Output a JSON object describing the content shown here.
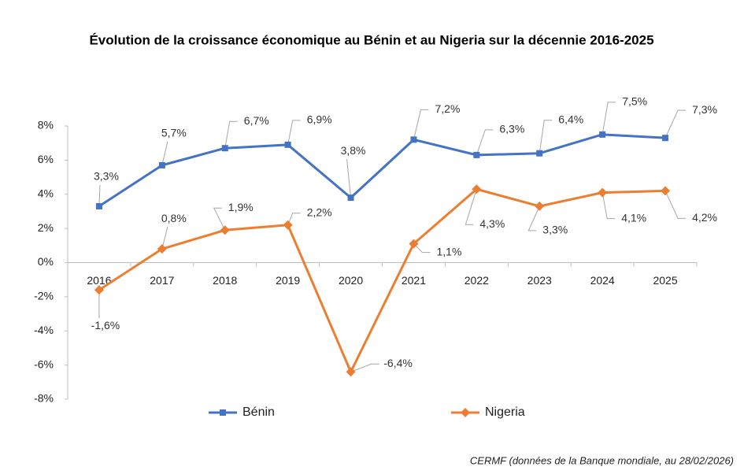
{
  "chart_data": {
    "type": "line",
    "title": "Évolution de la croissance économique au Bénin et au Nigeria sur la décennie 2016-2025",
    "source": "CERMF (données de la Banque mondiale, au 28/02/2026)",
    "categories": [
      "2016",
      "2017",
      "2018",
      "2019",
      "2020",
      "2021",
      "2022",
      "2023",
      "2024",
      "2025"
    ],
    "series": [
      {
        "name": "Bénin",
        "color": "#4472c4",
        "marker": "square",
        "values": [
          3.3,
          5.7,
          6.7,
          6.9,
          3.8,
          7.2,
          6.3,
          6.4,
          7.5,
          7.3
        ],
        "value_labels": [
          "3,3%",
          "5,7%",
          "6,7%",
          "6,9%",
          "3,8%",
          "7,2%",
          "6,3%",
          "6,4%",
          "7,5%",
          "7,3%"
        ]
      },
      {
        "name": "Nigeria",
        "color": "#ed7d31",
        "marker": "diamond",
        "values": [
          -1.6,
          0.8,
          1.9,
          2.2,
          -6.4,
          1.1,
          4.3,
          3.3,
          4.1,
          4.2
        ],
        "value_labels": [
          "-1,6%",
          "0,8%",
          "1,9%",
          "2,2%",
          "-6,4%",
          "1,1%",
          "4,3%",
          "3,3%",
          "4,1%",
          "4,2%"
        ]
      }
    ],
    "ylim": [
      -8,
      8
    ],
    "yticks": [
      {
        "value": -8,
        "label": "-8%"
      },
      {
        "value": -6,
        "label": "-6%"
      },
      {
        "value": -4,
        "label": "-4%"
      },
      {
        "value": -2,
        "label": "-2%"
      },
      {
        "value": 0,
        "label": "0%"
      },
      {
        "value": 2,
        "label": "2%"
      },
      {
        "value": 4,
        "label": "4%"
      },
      {
        "value": 6,
        "label": "6%"
      },
      {
        "value": 8,
        "label": "8%"
      }
    ],
    "grid": false,
    "legend": "bottom"
  }
}
